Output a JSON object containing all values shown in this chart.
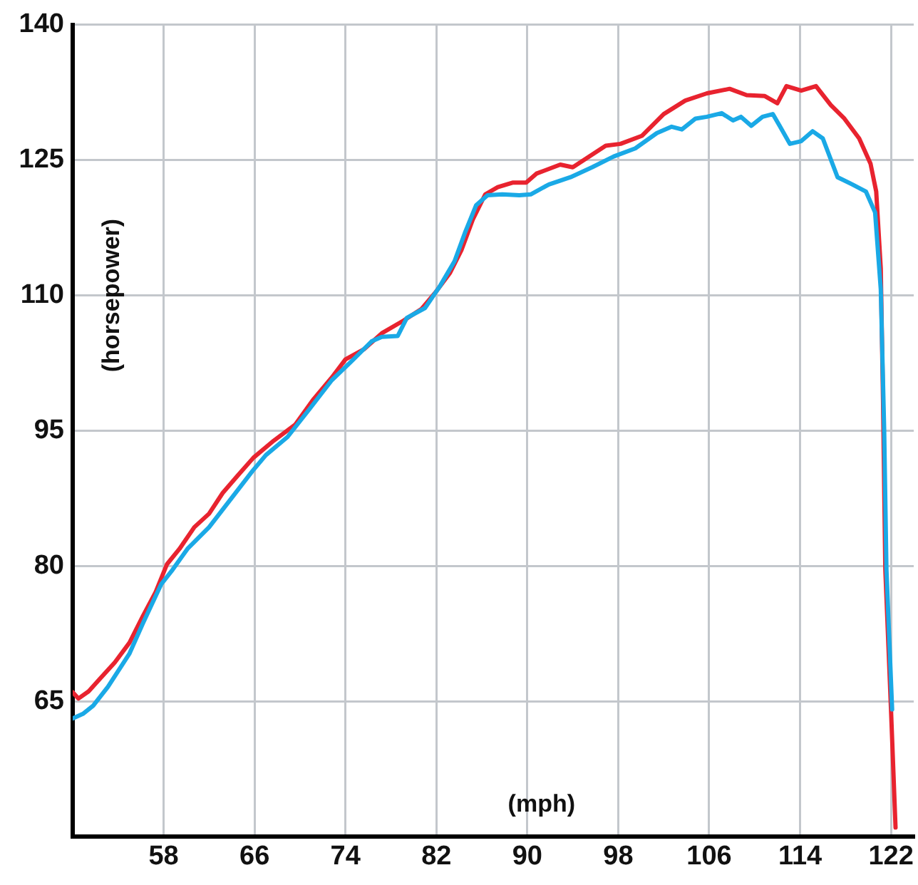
{
  "chart_data": {
    "type": "line",
    "xlabel": "(mph)",
    "ylabel": "(horsepower)",
    "xlim": [
      50,
      124
    ],
    "xticks": [
      58,
      66,
      74,
      82,
      90,
      98,
      106,
      114,
      122
    ],
    "ylim": [
      50,
      140
    ],
    "yticks": [
      65,
      80,
      95,
      110,
      125,
      140
    ],
    "grid": true,
    "legend": false,
    "marker": "none",
    "line_style": "solid",
    "series": [
      {
        "color": "#1aa9e6",
        "x": [
          50,
          50.9,
          51.8,
          53.1,
          55,
          56.2,
          57.8,
          58.8,
          60.1,
          62,
          63.9,
          65.8,
          67,
          68.9,
          70.9,
          72.8,
          74.7,
          76.3,
          77.2,
          78.6,
          79.4,
          81,
          82.3,
          83.6,
          84.5,
          85.5,
          86.5,
          87.8,
          89.3,
          90.3,
          91.9,
          93.8,
          95.7,
          97.6,
          99.5,
          101.4,
          102.7,
          103.6,
          104.8,
          105.8,
          107.1,
          108.1,
          108.8,
          109.7,
          110.7,
          111.6,
          112.2,
          113.1,
          114.1,
          115.1,
          116,
          117.3,
          118.6,
          119.8,
          120.6,
          121.1,
          121.4,
          121.6,
          122.1
        ],
        "values": [
          63.1,
          63.6,
          64.5,
          66.6,
          70.3,
          73.7,
          78,
          79.6,
          81.9,
          84.3,
          87.4,
          90.5,
          92.3,
          94.3,
          97.5,
          100.6,
          102.9,
          104.9,
          105.4,
          105.5,
          107.5,
          108.6,
          111,
          113.8,
          116.9,
          120,
          121.1,
          121.2,
          121.1,
          121.2,
          122.3,
          123.1,
          124.2,
          125.4,
          126.3,
          128,
          128.7,
          128.4,
          129.6,
          129.8,
          130.2,
          129.4,
          129.8,
          128.8,
          129.8,
          130.1,
          128.8,
          126.8,
          127.1,
          128.2,
          127.4,
          123.1,
          122.3,
          121.5,
          119.2,
          110.7,
          95.1,
          79.6,
          64.1
        ]
      },
      {
        "color": "#e8232f",
        "x": [
          50,
          50.5,
          51.4,
          52.4,
          53.7,
          55,
          56.2,
          57.3,
          58.3,
          59.4,
          60.7,
          62,
          63.2,
          64.5,
          65.9,
          67.7,
          69.6,
          71.2,
          72.8,
          74,
          75.6,
          77.2,
          79.1,
          80.7,
          81.9,
          83.2,
          84.2,
          85.2,
          86.3,
          87.4,
          88.7,
          89.9,
          90.8,
          92.9,
          94,
          95.7,
          96.9,
          98.2,
          100.1,
          102,
          103.9,
          105.8,
          107.8,
          109.3,
          110.9,
          112,
          112.8,
          114.1,
          115.4,
          116.7,
          117.9,
          119.2,
          120.2,
          120.7,
          121.1,
          121.3,
          121.5,
          122,
          122.4
        ],
        "values": [
          66,
          65.3,
          66.1,
          67.5,
          69.3,
          71.5,
          74.5,
          77.1,
          80.2,
          81.9,
          84.3,
          85.8,
          88.1,
          90,
          92,
          93.9,
          95.7,
          98.5,
          100.9,
          102.9,
          104,
          105.8,
          107.2,
          108.5,
          110.3,
          112.5,
          115,
          118.4,
          121.2,
          122,
          122.5,
          122.5,
          123.5,
          124.5,
          124.2,
          125.6,
          126.6,
          126.8,
          127.7,
          130.1,
          131.6,
          132.4,
          132.9,
          132.2,
          132.1,
          131.3,
          133.2,
          132.7,
          133.2,
          131.1,
          129.6,
          127.4,
          124.6,
          121.5,
          113,
          98.2,
          79.6,
          64.1,
          51
        ]
      }
    ]
  }
}
